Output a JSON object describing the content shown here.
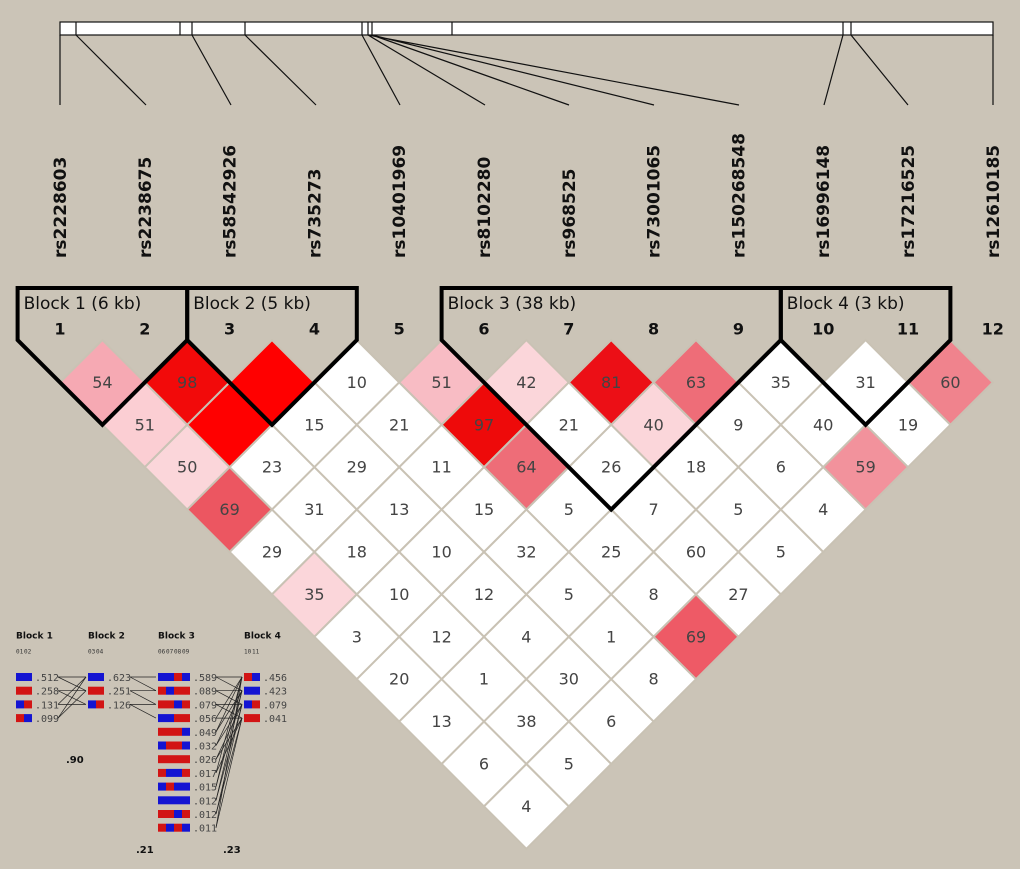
{
  "chart_data": {
    "type": "ld",
    "snps": [
      "rs2228603",
      "rs2238675",
      "rs58542926",
      "rs735273",
      "rs10401969",
      "rs8102280",
      "rs968525",
      "rs73001065",
      "rs150268548",
      "rs16996148",
      "rs17216525",
      "rs12610185"
    ],
    "snp_numbers": [
      1,
      2,
      3,
      4,
      5,
      6,
      7,
      8,
      9,
      10,
      11,
      12
    ],
    "cells": [
      {
        "pair": [
          1,
          2
        ],
        "value": 54,
        "color": "#f6a9b3"
      },
      {
        "pair": [
          2,
          3
        ],
        "value": 98,
        "color": "#f20a0a"
      },
      {
        "pair": [
          3,
          4
        ],
        "value": null,
        "color": "#ff0000"
      },
      {
        "pair": [
          4,
          5
        ],
        "value": 10,
        "color": "#ffffff"
      },
      {
        "pair": [
          5,
          6
        ],
        "value": 51,
        "color": "#f8bcc4"
      },
      {
        "pair": [
          6,
          7
        ],
        "value": 42,
        "color": "#fbd6da"
      },
      {
        "pair": [
          7,
          8
        ],
        "value": 81,
        "color": "#ec0f16"
      },
      {
        "pair": [
          8,
          9
        ],
        "value": 63,
        "color": "#ee6d78"
      },
      {
        "pair": [
          9,
          10
        ],
        "value": 35,
        "color": "#ffffff"
      },
      {
        "pair": [
          10,
          11
        ],
        "value": 31,
        "color": "#ffffff"
      },
      {
        "pair": [
          11,
          12
        ],
        "value": 60,
        "color": "#f0838d"
      },
      {
        "pair": [
          1,
          3
        ],
        "value": 51,
        "color": "#fbced3"
      },
      {
        "pair": [
          2,
          4
        ],
        "value": null,
        "color": "#ff0000"
      },
      {
        "pair": [
          3,
          5
        ],
        "value": 15,
        "color": "#ffffff"
      },
      {
        "pair": [
          4,
          6
        ],
        "value": 21,
        "color": "#ffffff"
      },
      {
        "pair": [
          5,
          7
        ],
        "value": 97,
        "color": "#ee0a0a"
      },
      {
        "pair": [
          6,
          8
        ],
        "value": 21,
        "color": "#ffffff"
      },
      {
        "pair": [
          7,
          9
        ],
        "value": 40,
        "color": "#fbd6da"
      },
      {
        "pair": [
          8,
          10
        ],
        "value": 9,
        "color": "#ffffff"
      },
      {
        "pair": [
          9,
          11
        ],
        "value": 40,
        "color": "#ffffff"
      },
      {
        "pair": [
          10,
          12
        ],
        "value": 19,
        "color": "#ffffff"
      },
      {
        "pair": [
          1,
          4
        ],
        "value": 50,
        "color": "#fbd6da"
      },
      {
        "pair": [
          2,
          5
        ],
        "value": 23,
        "color": "#ffffff"
      },
      {
        "pair": [
          3,
          6
        ],
        "value": 29,
        "color": "#ffffff"
      },
      {
        "pair": [
          4,
          7
        ],
        "value": 11,
        "color": "#ffffff"
      },
      {
        "pair": [
          5,
          8
        ],
        "value": 64,
        "color": "#ee6d78"
      },
      {
        "pair": [
          6,
          9
        ],
        "value": 26,
        "color": "#ffffff"
      },
      {
        "pair": [
          7,
          10
        ],
        "value": 18,
        "color": "#ffffff"
      },
      {
        "pair": [
          8,
          11
        ],
        "value": 6,
        "color": "#ffffff"
      },
      {
        "pair": [
          9,
          12
        ],
        "value": 59,
        "color": "#f2929c"
      },
      {
        "pair": [
          1,
          5
        ],
        "value": 69,
        "color": "#ec5661"
      },
      {
        "pair": [
          2,
          6
        ],
        "value": 31,
        "color": "#ffffff"
      },
      {
        "pair": [
          3,
          7
        ],
        "value": 13,
        "color": "#ffffff"
      },
      {
        "pair": [
          4,
          8
        ],
        "value": 15,
        "color": "#ffffff"
      },
      {
        "pair": [
          5,
          9
        ],
        "value": 5,
        "color": "#ffffff"
      },
      {
        "pair": [
          6,
          10
        ],
        "value": 7,
        "color": "#ffffff"
      },
      {
        "pair": [
          7,
          11
        ],
        "value": 5,
        "color": "#ffffff"
      },
      {
        "pair": [
          8,
          12
        ],
        "value": 4,
        "color": "#ffffff"
      },
      {
        "pair": [
          1,
          6
        ],
        "value": 29,
        "color": "#ffffff"
      },
      {
        "pair": [
          2,
          7
        ],
        "value": 18,
        "color": "#ffffff"
      },
      {
        "pair": [
          3,
          8
        ],
        "value": 10,
        "color": "#ffffff"
      },
      {
        "pair": [
          4,
          9
        ],
        "value": 32,
        "color": "#ffffff"
      },
      {
        "pair": [
          5,
          10
        ],
        "value": 25,
        "color": "#ffffff"
      },
      {
        "pair": [
          6,
          11
        ],
        "value": 60,
        "color": "#ffffff"
      },
      {
        "pair": [
          7,
          12
        ],
        "value": 5,
        "color": "#ffffff"
      },
      {
        "pair": [
          1,
          7
        ],
        "value": 35,
        "color": "#fbd6da"
      },
      {
        "pair": [
          2,
          8
        ],
        "value": 10,
        "color": "#ffffff"
      },
      {
        "pair": [
          3,
          9
        ],
        "value": 12,
        "color": "#ffffff"
      },
      {
        "pair": [
          4,
          10
        ],
        "value": 5,
        "color": "#ffffff"
      },
      {
        "pair": [
          5,
          11
        ],
        "value": 8,
        "color": "#ffffff"
      },
      {
        "pair": [
          6,
          12
        ],
        "value": 27,
        "color": "#ffffff"
      },
      {
        "pair": [
          1,
          8
        ],
        "value": 3,
        "color": "#ffffff"
      },
      {
        "pair": [
          2,
          9
        ],
        "value": 12,
        "color": "#ffffff"
      },
      {
        "pair": [
          3,
          10
        ],
        "value": 4,
        "color": "#ffffff"
      },
      {
        "pair": [
          4,
          11
        ],
        "value": 1,
        "color": "#ffffff"
      },
      {
        "pair": [
          5,
          12
        ],
        "value": 69,
        "color": "#ee5a66"
      },
      {
        "pair": [
          1,
          9
        ],
        "value": 20,
        "color": "#ffffff"
      },
      {
        "pair": [
          2,
          10
        ],
        "value": 1,
        "color": "#ffffff"
      },
      {
        "pair": [
          3,
          11
        ],
        "value": 30,
        "color": "#ffffff"
      },
      {
        "pair": [
          4,
          12
        ],
        "value": 8,
        "color": "#ffffff"
      },
      {
        "pair": [
          1,
          10
        ],
        "value": 13,
        "color": "#ffffff"
      },
      {
        "pair": [
          2,
          11
        ],
        "value": 38,
        "color": "#ffffff"
      },
      {
        "pair": [
          3,
          12
        ],
        "value": 6,
        "color": "#ffffff"
      },
      {
        "pair": [
          1,
          11
        ],
        "value": 6,
        "color": "#ffffff"
      },
      {
        "pair": [
          2,
          12
        ],
        "value": 5,
        "color": "#ffffff"
      },
      {
        "pair": [
          1,
          12
        ],
        "value": 4,
        "color": "#ffffff"
      }
    ],
    "blocks": [
      {
        "label": "Block 1 (6 kb)",
        "first": 1,
        "last": 2
      },
      {
        "label": "Block 2 (5 kb)",
        "first": 3,
        "last": 4
      },
      {
        "label": "Block 3 (38 kb)",
        "first": 6,
        "last": 9
      },
      {
        "label": "Block 4 (3 kb)",
        "first": 10,
        "last": 11
      }
    ],
    "haplotypes": {
      "allele_colors": [
        "#1414d2",
        "#d21414"
      ],
      "blocks": [
        {
          "title": "Block 1",
          "markers": [
            "01",
            "02"
          ],
          "rows": [
            {
              "freq": ".512",
              "alleles": [
                0,
                0
              ]
            },
            {
              "freq": ".258",
              "alleles": [
                1,
                1
              ]
            },
            {
              "freq": ".131",
              "alleles": [
                0,
                1
              ]
            },
            {
              "freq": ".099",
              "alleles": [
                1,
                0
              ]
            }
          ]
        },
        {
          "title": "Block 2",
          "markers": [
            "03",
            "04"
          ],
          "rows": [
            {
              "freq": ".623",
              "alleles": [
                0,
                0
              ]
            },
            {
              "freq": ".251",
              "alleles": [
                1,
                1
              ]
            },
            {
              "freq": ".126",
              "alleles": [
                0,
                1
              ]
            }
          ]
        },
        {
          "title": "Block 3",
          "markers": [
            "06",
            "07",
            "08",
            "09"
          ],
          "rows": [
            {
              "freq": ".589",
              "alleles": [
                0,
                0,
                1,
                0
              ]
            },
            {
              "freq": ".089",
              "alleles": [
                1,
                0,
                1,
                1
              ]
            },
            {
              "freq": ".079",
              "alleles": [
                1,
                1,
                0,
                1
              ]
            },
            {
              "freq": ".056",
              "alleles": [
                0,
                0,
                1,
                1
              ]
            },
            {
              "freq": ".049",
              "alleles": [
                1,
                1,
                1,
                0
              ]
            },
            {
              "freq": ".032",
              "alleles": [
                0,
                1,
                1,
                0
              ]
            },
            {
              "freq": ".026",
              "alleles": [
                1,
                1,
                1,
                1
              ]
            },
            {
              "freq": ".017",
              "alleles": [
                1,
                0,
                0,
                1
              ]
            },
            {
              "freq": ".015",
              "alleles": [
                0,
                1,
                0,
                0
              ]
            },
            {
              "freq": ".012",
              "alleles": [
                0,
                0,
                0,
                0
              ]
            },
            {
              "freq": ".012",
              "alleles": [
                1,
                1,
                0,
                1
              ]
            },
            {
              "freq": ".011",
              "alleles": [
                1,
                0,
                1,
                0
              ]
            }
          ]
        },
        {
          "title": "Block 4",
          "markers": [
            "10",
            "11"
          ],
          "rows": [
            {
              "freq": ".456",
              "alleles": [
                1,
                0
              ]
            },
            {
              "freq": ".423",
              "alleles": [
                0,
                0
              ]
            },
            {
              "freq": ".079",
              "alleles": [
                0,
                1
              ]
            },
            {
              "freq": ".041",
              "alleles": [
                1,
                1
              ]
            }
          ]
        }
      ],
      "multiallelic": [
        ".90",
        ".21",
        ".23"
      ]
    }
  }
}
